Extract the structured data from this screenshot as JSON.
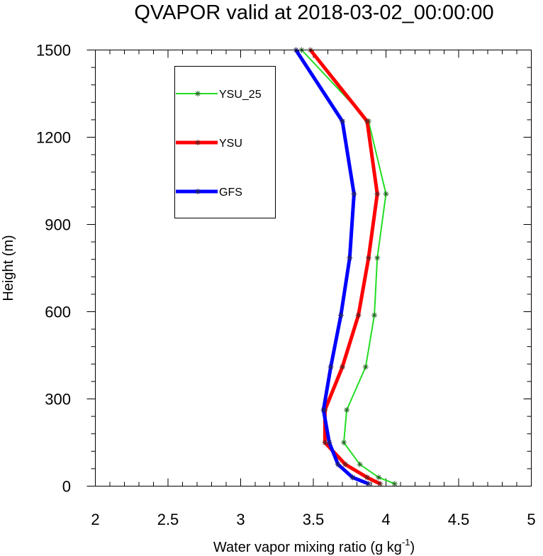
{
  "chart_data": {
    "type": "line",
    "title": "QVAPOR valid at 2018-03-02_00:00:00",
    "xlabel": "Water vapor mixing ratio (g kg",
    "xlabel_superscript": "-1",
    "xlabel_suffix": ")",
    "ylabel": "Height (m)",
    "xlim": [
      2,
      5
    ],
    "ylim": [
      0,
      1500
    ],
    "x_major_ticks": [
      2,
      2.5,
      3,
      3.5,
      4,
      4.5,
      5
    ],
    "x_tick_labels": [
      "2",
      "2.5",
      "3",
      "3.5",
      "4",
      "4.5",
      "5"
    ],
    "y_major_ticks": [
      0,
      300,
      600,
      900,
      1200,
      1500
    ],
    "y_tick_labels": [
      "0",
      "300",
      "600",
      "900",
      "1200",
      "1500"
    ],
    "grid": false,
    "legend": "top-left",
    "series": [
      {
        "name": "YSU_25",
        "color": "#22dd22",
        "points": [
          [
            4.06,
            8
          ],
          [
            3.95,
            30
          ],
          [
            3.82,
            75
          ],
          [
            3.71,
            150
          ],
          [
            3.73,
            262
          ],
          [
            3.86,
            410
          ],
          [
            3.92,
            588
          ],
          [
            3.94,
            785
          ],
          [
            4.0,
            1005
          ],
          [
            3.88,
            1255
          ],
          [
            3.42,
            1500
          ]
        ]
      },
      {
        "name": "YSU",
        "color": "#ff0000",
        "points": [
          [
            3.96,
            8
          ],
          [
            3.87,
            30
          ],
          [
            3.72,
            75
          ],
          [
            3.58,
            150
          ],
          [
            3.58,
            262
          ],
          [
            3.7,
            410
          ],
          [
            3.81,
            588
          ],
          [
            3.88,
            785
          ],
          [
            3.94,
            1005
          ],
          [
            3.87,
            1255
          ],
          [
            3.48,
            1500
          ]
        ]
      },
      {
        "name": "GFS",
        "color": "#0000ff",
        "points": [
          [
            3.88,
            8
          ],
          [
            3.77,
            30
          ],
          [
            3.67,
            75
          ],
          [
            3.61,
            150
          ],
          [
            3.57,
            262
          ],
          [
            3.62,
            410
          ],
          [
            3.69,
            588
          ],
          [
            3.75,
            785
          ],
          [
            3.78,
            1005
          ],
          [
            3.7,
            1255
          ],
          [
            3.38,
            1500
          ]
        ]
      }
    ]
  }
}
